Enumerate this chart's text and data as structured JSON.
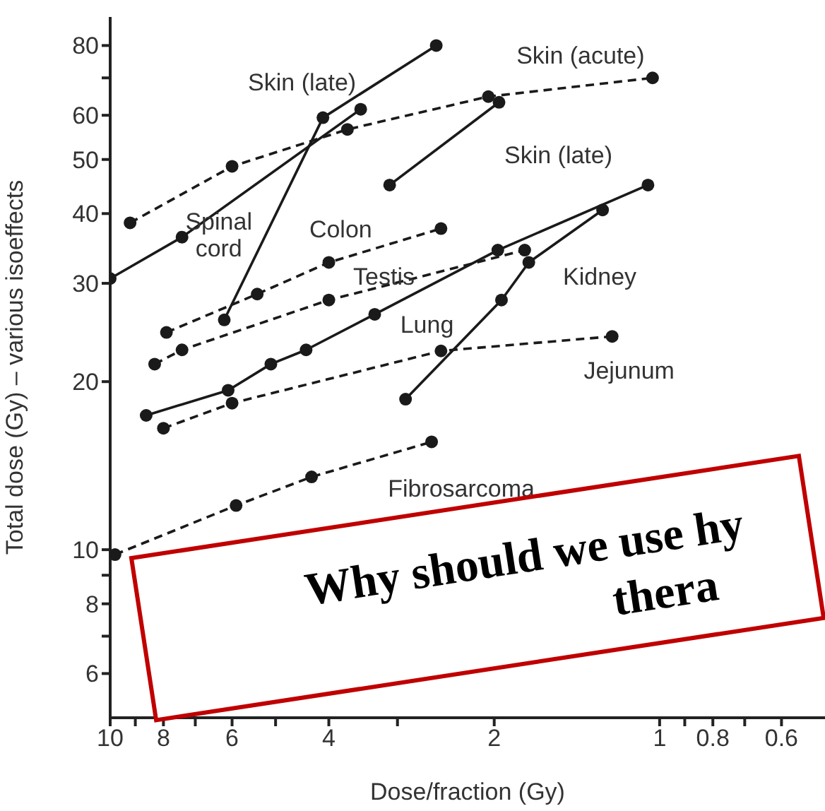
{
  "chart_data": {
    "type": "line",
    "xlabel": "Dose/fraction (Gy)",
    "ylabel": "Total dose (Gy) – various isoeffects",
    "log": "xy",
    "marker": "circle",
    "legend": false,
    "xlim": [
      10,
      0.5
    ],
    "ylim": [
      5,
      90
    ],
    "xticks": [
      10,
      {
        "value": 9,
        "label": null
      },
      8,
      {
        "value": 7,
        "label": null
      },
      6,
      {
        "value": 5,
        "label": null
      },
      4,
      {
        "value": 3,
        "label": null
      },
      2,
      1,
      {
        "value": 0.9,
        "label": null
      },
      0.8,
      {
        "value": 0.7,
        "label": null
      },
      0.6
    ],
    "yticks": [
      {
        "value": 6,
        "label": "6"
      },
      {
        "value": 7,
        "label": null
      },
      8,
      {
        "value": 9,
        "label": null
      },
      10,
      20,
      30,
      40,
      50,
      60,
      {
        "value": 70,
        "label": null
      },
      80
    ],
    "series": [
      {
        "name": "Skin (acute)",
        "color": "#1a1a1a",
        "line_style": "dashed",
        "x": [
          9.2,
          6.0,
          3.7,
          2.05,
          1.03
        ],
        "values": [
          38.5,
          48.6,
          56.6,
          64.8,
          70
        ]
      },
      {
        "name": "Skin (late)",
        "color": "#1a1a1a",
        "line_style": "solid",
        "x": [
          6.2,
          4.1,
          2.55
        ],
        "values": [
          25.8,
          59.4,
          80
        ]
      },
      {
        "name": "Spinal\ncord",
        "color": "#1a1a1a",
        "line_style": "solid",
        "x": [
          10,
          7.4,
          3.5
        ],
        "values": [
          30.6,
          36.3,
          61.5
        ]
      },
      {
        "name": "Skin (late)",
        "color": "#1a1a1a",
        "line_style": "solid",
        "x": [
          3.1,
          1.96
        ],
        "values": [
          45,
          63.3
        ]
      },
      {
        "name": "Colon",
        "color": "#1a1a1a",
        "line_style": "dashed",
        "x": [
          7.9,
          5.4,
          4.0,
          2.5
        ],
        "values": [
          24.5,
          28.7,
          32.7,
          37.6
        ]
      },
      {
        "name": "Testis",
        "color": "#1a1a1a",
        "line_style": "dashed",
        "x": [
          8.3,
          7.4,
          4.0,
          1.76
        ],
        "values": [
          21.5,
          22.8,
          28,
          34.4
        ]
      },
      {
        "name": "Lung",
        "color": "#1a1a1a",
        "line_style": "solid",
        "x": [
          8.6,
          6.1,
          5.1,
          4.4,
          3.3,
          1.97,
          1.05
        ],
        "values": [
          17.4,
          19.3,
          21.5,
          22.8,
          26.4,
          34.4,
          45
        ]
      },
      {
        "name": "Kidney",
        "color": "#1a1a1a",
        "line_style": "solid",
        "x": [
          2.9,
          1.94,
          1.73,
          1.27
        ],
        "values": [
          18.6,
          28,
          32.7,
          40.6
        ]
      },
      {
        "name": "Jejunum",
        "color": "#1a1a1a",
        "line_style": "dashed",
        "x": [
          8.0,
          6.0,
          2.5,
          1.22
        ],
        "values": [
          16.5,
          18.3,
          22.7,
          24.1
        ]
      },
      {
        "name": "Fibrosarcoma",
        "color": "#1a1a1a",
        "line_style": "dashed",
        "x": [
          9.8,
          5.9,
          4.3,
          2.6
        ],
        "values": [
          9.8,
          12,
          13.5,
          15.6
        ]
      }
    ],
    "annotations": [
      "Why should we use hy",
      "thera"
    ]
  }
}
